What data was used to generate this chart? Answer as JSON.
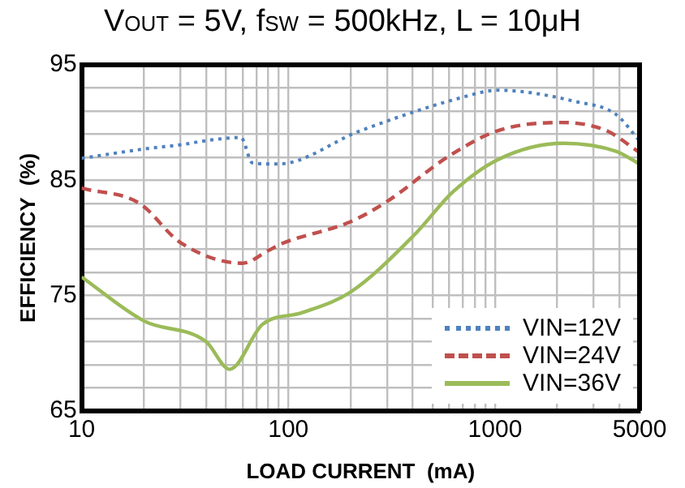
{
  "chart_data": {
    "type": "line",
    "title": "V$_{OUT}$ = 5V, f$_{SW}$ = 500kHz, L = 10μH",
    "xlabel": "LOAD CURRENT  (mA)",
    "ylabel": "EFFICIENCY  (%)",
    "log": "x",
    "grid": true,
    "legend": "bottom right",
    "marker": "none",
    "xlim": [
      10,
      5000
    ],
    "ylim": [
      65,
      95
    ],
    "xticks": [
      10,
      {
        "value": 20,
        "label": null
      },
      {
        "value": 30,
        "label": null
      },
      {
        "value": 40,
        "label": null
      },
      {
        "value": 50,
        "label": null
      },
      {
        "value": 60,
        "label": null
      },
      {
        "value": 70,
        "label": null
      },
      {
        "value": 80,
        "label": null
      },
      {
        "value": 90,
        "label": null
      },
      100,
      {
        "value": 200,
        "label": null
      },
      {
        "value": 300,
        "label": null
      },
      {
        "value": 400,
        "label": null
      },
      {
        "value": 500,
        "label": null
      },
      {
        "value": 600,
        "label": null
      },
      {
        "value": 700,
        "label": null
      },
      {
        "value": 800,
        "label": null
      },
      {
        "value": 900,
        "label": null
      },
      1000,
      {
        "value": 2000,
        "label": null
      },
      {
        "value": 3000,
        "label": null
      },
      {
        "value": 4000,
        "label": null
      },
      5000
    ],
    "yticks": [
      65,
      {
        "value": 67,
        "label": null
      },
      {
        "value": 69,
        "label": null
      },
      {
        "value": 71,
        "label": null
      },
      {
        "value": 73,
        "label": null
      },
      75,
      {
        "value": 77,
        "label": null
      },
      {
        "value": 79,
        "label": null
      },
      {
        "value": 81,
        "label": null
      },
      {
        "value": 83,
        "label": null
      },
      85,
      {
        "value": 87,
        "label": null
      },
      {
        "value": 89,
        "label": null
      },
      {
        "value": 91,
        "label": null
      },
      {
        "value": 93,
        "label": null
      },
      95
    ],
    "series": [
      {
        "name": "VIN=12V",
        "color": "#4f81bd",
        "line_style": "dotted",
        "x": [
          10,
          20,
          31,
          39,
          59,
          67,
          89,
          224,
          668,
          1036,
          2480,
          3846,
          5000
        ],
        "values": [
          86.9,
          87.7,
          88.1,
          88.4,
          88.7,
          86.5,
          86.4,
          89.3,
          92.1,
          92.8,
          91.8,
          90.7,
          88.4
        ]
      },
      {
        "name": "VIN=24V",
        "color": "#c0504d",
        "line_style": "dashed",
        "x": [
          10,
          19,
          30,
          60,
          80,
          93,
          200,
          297,
          600,
          1036,
          2100,
          3450,
          5000
        ],
        "values": [
          84.3,
          83.0,
          79.6,
          77.8,
          78.9,
          79.5,
          81.4,
          83.1,
          87.1,
          89.3,
          90.0,
          89.3,
          87.4
        ]
      },
      {
        "name": "VIN=36V",
        "color": "#9bbb59",
        "line_style": "solid",
        "x": [
          10,
          20,
          40,
          52,
          75,
          116,
          200,
          404,
          627,
          1036,
          2140,
          3846,
          5000
        ],
        "values": [
          76.6,
          72.8,
          71.0,
          68.6,
          72.5,
          73.5,
          75.3,
          80.2,
          84.0,
          86.8,
          88.2,
          87.5,
          86.4
        ]
      }
    ]
  }
}
